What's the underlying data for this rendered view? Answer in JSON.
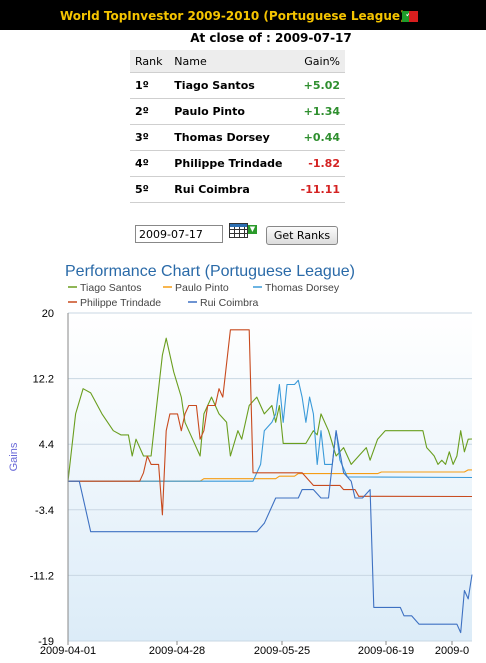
{
  "header": {
    "title": "World TopInvestor 2009-2010 (Portuguese League)",
    "flag_icon": "portugal-flag-icon"
  },
  "close_line": {
    "label": "At close of :",
    "date": "2009-07-17"
  },
  "table": {
    "columns": [
      "Rank",
      "Name",
      "Gain%"
    ],
    "rows": [
      {
        "rank": "1º",
        "name": "Tiago Santos",
        "gain": "+5.02",
        "color": "#2f8f2f"
      },
      {
        "rank": "2º",
        "name": "Paulo Pinto",
        "gain": "+1.34",
        "color": "#2f8f2f"
      },
      {
        "rank": "3º",
        "name": "Thomas Dorsey",
        "gain": "+0.44",
        "color": "#2f8f2f"
      },
      {
        "rank": "4º",
        "name": "Philippe Trindade",
        "gain": "-1.82",
        "color": "#d42222"
      },
      {
        "rank": "5º",
        "name": "Rui Coimbra",
        "gain": "-11.11",
        "color": "#d42222"
      }
    ]
  },
  "controls": {
    "date_value": "2009-07-17",
    "button_label": "Get Ranks",
    "calendar_icon": "calendar-icon"
  },
  "chart_data": {
    "type": "line",
    "title": "Performance Chart (Portuguese League)",
    "ylabel": "Gains",
    "xlabel": "",
    "ylim": [
      -19,
      20
    ],
    "yticks": [
      "20",
      "12.2",
      "4.4",
      "-3.4",
      "-11.2",
      "-19"
    ],
    "xticks": [
      "2009-04-01",
      "2009-04-28",
      "2009-05-25",
      "2009-06-19",
      "2009-0"
    ],
    "x_start": "2009-04-01",
    "x_end": "2009-07-17",
    "legend_position": "top",
    "grid": "horizontal",
    "series": [
      {
        "name": "Tiago Santos",
        "color": "#6a9e1f",
        "points": [
          [
            "2009-04-01",
            0
          ],
          [
            "2009-04-03",
            8
          ],
          [
            "2009-04-05",
            11
          ],
          [
            "2009-04-07",
            10.5
          ],
          [
            "2009-04-10",
            8
          ],
          [
            "2009-04-13",
            6
          ],
          [
            "2009-04-15",
            5.5
          ],
          [
            "2009-04-17",
            5.5
          ],
          [
            "2009-04-18",
            3
          ],
          [
            "2009-04-19",
            5
          ],
          [
            "2009-04-21",
            3
          ],
          [
            "2009-04-23",
            3
          ],
          [
            "2009-04-24",
            7
          ],
          [
            "2009-04-26",
            15
          ],
          [
            "2009-04-27",
            17
          ],
          [
            "2009-04-29",
            13
          ],
          [
            "2009-05-01",
            10
          ],
          [
            "2009-05-02",
            7
          ],
          [
            "2009-05-04",
            5
          ],
          [
            "2009-05-06",
            3
          ],
          [
            "2009-05-07",
            8
          ],
          [
            "2009-05-09",
            10
          ],
          [
            "2009-05-11",
            8
          ],
          [
            "2009-05-13",
            7
          ],
          [
            "2009-05-14",
            3
          ],
          [
            "2009-05-16",
            6
          ],
          [
            "2009-05-17",
            5
          ],
          [
            "2009-05-19",
            9
          ],
          [
            "2009-05-21",
            10
          ],
          [
            "2009-05-23",
            8
          ],
          [
            "2009-05-25",
            9
          ],
          [
            "2009-05-26",
            7
          ],
          [
            "2009-05-27",
            9
          ],
          [
            "2009-05-28",
            4.5
          ],
          [
            "2009-05-31",
            4.5
          ],
          [
            "2009-06-03",
            4.5
          ],
          [
            "2009-06-05",
            6
          ],
          [
            "2009-06-06",
            5.5
          ],
          [
            "2009-06-07",
            8
          ],
          [
            "2009-06-09",
            6
          ],
          [
            "2009-06-11",
            3
          ],
          [
            "2009-06-13",
            4
          ],
          [
            "2009-06-15",
            2
          ],
          [
            "2009-06-17",
            3
          ],
          [
            "2009-06-19",
            4
          ],
          [
            "2009-06-20",
            2.5
          ],
          [
            "2009-06-22",
            5
          ],
          [
            "2009-06-24",
            6
          ],
          [
            "2009-06-27",
            6
          ],
          [
            "2009-07-04",
            6
          ],
          [
            "2009-07-05",
            4
          ],
          [
            "2009-07-06",
            3.5
          ],
          [
            "2009-07-07",
            3
          ],
          [
            "2009-07-08",
            2
          ],
          [
            "2009-07-09",
            2.5
          ],
          [
            "2009-07-10",
            2
          ],
          [
            "2009-07-11",
            3.5
          ],
          [
            "2009-07-12",
            2
          ],
          [
            "2009-07-13",
            3
          ],
          [
            "2009-07-14",
            6
          ],
          [
            "2009-07-15",
            3.5
          ],
          [
            "2009-07-16",
            5
          ],
          [
            "2009-07-17",
            5.02
          ]
        ]
      },
      {
        "name": "Paulo Pinto",
        "color": "#f59d14",
        "points": [
          [
            "2009-04-01",
            0
          ],
          [
            "2009-05-06",
            0
          ],
          [
            "2009-05-07",
            0.3
          ],
          [
            "2009-05-26",
            0.3
          ],
          [
            "2009-05-27",
            0.6
          ],
          [
            "2009-05-31",
            0.6
          ],
          [
            "2009-06-01",
            0.9
          ],
          [
            "2009-06-22",
            0.9
          ],
          [
            "2009-06-23",
            1.1
          ],
          [
            "2009-07-15",
            1.1
          ],
          [
            "2009-07-16",
            1.34
          ],
          [
            "2009-07-17",
            1.34
          ]
        ]
      },
      {
        "name": "Thomas Dorsey",
        "color": "#3a9ad9",
        "points": [
          [
            "2009-04-01",
            0
          ],
          [
            "2009-05-20",
            0
          ],
          [
            "2009-05-22",
            2
          ],
          [
            "2009-05-23",
            6
          ],
          [
            "2009-05-25",
            7
          ],
          [
            "2009-05-26",
            8
          ],
          [
            "2009-05-27",
            11.5
          ],
          [
            "2009-05-28",
            7
          ],
          [
            "2009-05-29",
            11.5
          ],
          [
            "2009-05-31",
            11.5
          ],
          [
            "2009-06-01",
            12
          ],
          [
            "2009-06-02",
            10
          ],
          [
            "2009-06-03",
            7
          ],
          [
            "2009-06-04",
            10
          ],
          [
            "2009-06-05",
            8
          ],
          [
            "2009-06-06",
            2
          ],
          [
            "2009-06-07",
            6
          ],
          [
            "2009-06-08",
            2
          ],
          [
            "2009-06-10",
            2
          ],
          [
            "2009-06-11",
            6
          ],
          [
            "2009-06-12",
            2.5
          ],
          [
            "2009-06-14",
            0.5
          ],
          [
            "2009-06-17",
            0.5
          ],
          [
            "2009-06-19",
            0.5
          ],
          [
            "2009-07-17",
            0.44
          ]
        ]
      },
      {
        "name": "Philippe Trindade",
        "color": "#c84a1e",
        "points": [
          [
            "2009-04-01",
            0
          ],
          [
            "2009-04-19",
            0
          ],
          [
            "2009-04-20",
            0
          ],
          [
            "2009-04-21",
            1
          ],
          [
            "2009-04-22",
            3
          ],
          [
            "2009-04-23",
            2
          ],
          [
            "2009-04-25",
            2
          ],
          [
            "2009-04-26",
            -4
          ],
          [
            "2009-04-27",
            6
          ],
          [
            "2009-04-28",
            8
          ],
          [
            "2009-04-30",
            8
          ],
          [
            "2009-05-01",
            6
          ],
          [
            "2009-05-02",
            8
          ],
          [
            "2009-05-03",
            9
          ],
          [
            "2009-05-05",
            9
          ],
          [
            "2009-05-06",
            5
          ],
          [
            "2009-05-07",
            6
          ],
          [
            "2009-05-08",
            9
          ],
          [
            "2009-05-10",
            9
          ],
          [
            "2009-05-11",
            11
          ],
          [
            "2009-05-12",
            10
          ],
          [
            "2009-05-14",
            18
          ],
          [
            "2009-05-18",
            18
          ],
          [
            "2009-05-19",
            18
          ],
          [
            "2009-05-20",
            1
          ],
          [
            "2009-06-01",
            1
          ],
          [
            "2009-06-02",
            1
          ],
          [
            "2009-06-05",
            -0.5
          ],
          [
            "2009-06-12",
            -0.5
          ],
          [
            "2009-06-13",
            -1
          ],
          [
            "2009-06-16",
            -1
          ],
          [
            "2009-06-17",
            -1.8
          ],
          [
            "2009-07-17",
            -1.82
          ]
        ]
      },
      {
        "name": "Rui Coimbra",
        "color": "#3e71c2",
        "points": [
          [
            "2009-04-01",
            0
          ],
          [
            "2009-04-04",
            0
          ],
          [
            "2009-04-05",
            -2
          ],
          [
            "2009-04-07",
            -6
          ],
          [
            "2009-05-21",
            -6
          ],
          [
            "2009-05-23",
            -5
          ],
          [
            "2009-05-26",
            -2
          ],
          [
            "2009-06-01",
            -2
          ],
          [
            "2009-06-02",
            -1
          ],
          [
            "2009-06-05",
            -1
          ],
          [
            "2009-06-07",
            -2
          ],
          [
            "2009-06-09",
            -2
          ],
          [
            "2009-06-11",
            6
          ],
          [
            "2009-06-13",
            1
          ],
          [
            "2009-06-15",
            0
          ],
          [
            "2009-06-16",
            -2
          ],
          [
            "2009-06-18",
            -2
          ],
          [
            "2009-06-20",
            -1
          ],
          [
            "2009-06-21",
            -15
          ],
          [
            "2009-06-28",
            -15
          ],
          [
            "2009-06-29",
            -16
          ],
          [
            "2009-07-01",
            -16
          ],
          [
            "2009-07-03",
            -17
          ],
          [
            "2009-07-13",
            -17
          ],
          [
            "2009-07-14",
            -18
          ],
          [
            "2009-07-15",
            -13
          ],
          [
            "2009-07-16",
            -14
          ],
          [
            "2009-07-17",
            -11.11
          ]
        ]
      }
    ]
  }
}
